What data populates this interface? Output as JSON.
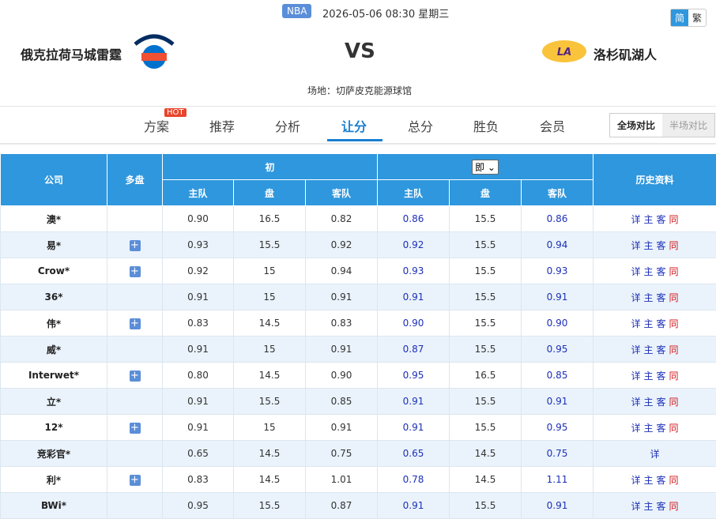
{
  "header": {
    "league": "NBA",
    "datetime": "2026-05-06 08:30 星期三",
    "home": "俄克拉荷马城雷霆",
    "vs": "VS",
    "away": "洛杉矶湖人",
    "venue": "场地：切萨皮克能源球馆",
    "lang": [
      "简",
      "繁"
    ]
  },
  "tabs": {
    "items": [
      "方案",
      "推荐",
      "分析",
      "让分",
      "总分",
      "胜负",
      "会员"
    ],
    "hot": "HOT",
    "active": 3,
    "compare": [
      "全场对比",
      "半场对比"
    ]
  },
  "table": {
    "columns": {
      "company": "公司",
      "multi": "多盘",
      "open": "初",
      "live": "即",
      "home": "主队",
      "line": "盘",
      "away": "客队",
      "history": "历史资料"
    },
    "rows": [
      {
        "company": "澳*",
        "multi": false,
        "open": [
          "0.90",
          "16.5",
          "0.82"
        ],
        "live": [
          "0.86",
          "15.5",
          "0.86"
        ],
        "history": [
          "详",
          "主",
          "客",
          "同"
        ]
      },
      {
        "company": "易*",
        "multi": true,
        "open": [
          "0.93",
          "15.5",
          "0.92"
        ],
        "live": [
          "0.92",
          "15.5",
          "0.94"
        ],
        "history": [
          "详",
          "主",
          "客",
          "同"
        ]
      },
      {
        "company": "Crow*",
        "multi": true,
        "open": [
          "0.92",
          "15",
          "0.94"
        ],
        "live": [
          "0.93",
          "15.5",
          "0.93"
        ],
        "history": [
          "详",
          "主",
          "客",
          "同"
        ]
      },
      {
        "company": "36*",
        "multi": false,
        "open": [
          "0.91",
          "15",
          "0.91"
        ],
        "live": [
          "0.91",
          "15.5",
          "0.91"
        ],
        "history": [
          "详",
          "主",
          "客",
          "同"
        ]
      },
      {
        "company": "伟*",
        "multi": true,
        "open": [
          "0.83",
          "14.5",
          "0.83"
        ],
        "live": [
          "0.90",
          "15.5",
          "0.90"
        ],
        "history": [
          "详",
          "主",
          "客",
          "同"
        ]
      },
      {
        "company": "威*",
        "multi": false,
        "open": [
          "0.91",
          "15",
          "0.91"
        ],
        "live": [
          "0.87",
          "15.5",
          "0.95"
        ],
        "history": [
          "详",
          "主",
          "客",
          "同"
        ]
      },
      {
        "company": "Interwet*",
        "multi": true,
        "open": [
          "0.80",
          "14.5",
          "0.90"
        ],
        "live": [
          "0.95",
          "16.5",
          "0.85"
        ],
        "history": [
          "详",
          "主",
          "客",
          "同"
        ]
      },
      {
        "company": "立*",
        "multi": false,
        "open": [
          "0.91",
          "15.5",
          "0.85"
        ],
        "live": [
          "0.91",
          "15.5",
          "0.91"
        ],
        "history": [
          "详",
          "主",
          "客",
          "同"
        ]
      },
      {
        "company": "12*",
        "multi": true,
        "open": [
          "0.91",
          "15",
          "0.91"
        ],
        "live": [
          "0.91",
          "15.5",
          "0.95"
        ],
        "history": [
          "详",
          "主",
          "客",
          "同"
        ]
      },
      {
        "company": "竞彩官*",
        "multi": false,
        "open": [
          "0.65",
          "14.5",
          "0.75"
        ],
        "live": [
          "0.65",
          "14.5",
          "0.75"
        ],
        "history": [
          "详"
        ]
      },
      {
        "company": "利*",
        "multi": true,
        "open": [
          "0.83",
          "14.5",
          "1.01"
        ],
        "live": [
          "0.78",
          "14.5",
          "1.11"
        ],
        "history": [
          "详",
          "主",
          "客",
          "同"
        ]
      },
      {
        "company": "BWi*",
        "multi": false,
        "open": [
          "0.95",
          "15.5",
          "0.87"
        ],
        "live": [
          "0.91",
          "15.5",
          "0.91"
        ],
        "history": [
          "详",
          "主",
          "客",
          "同"
        ]
      }
    ]
  }
}
